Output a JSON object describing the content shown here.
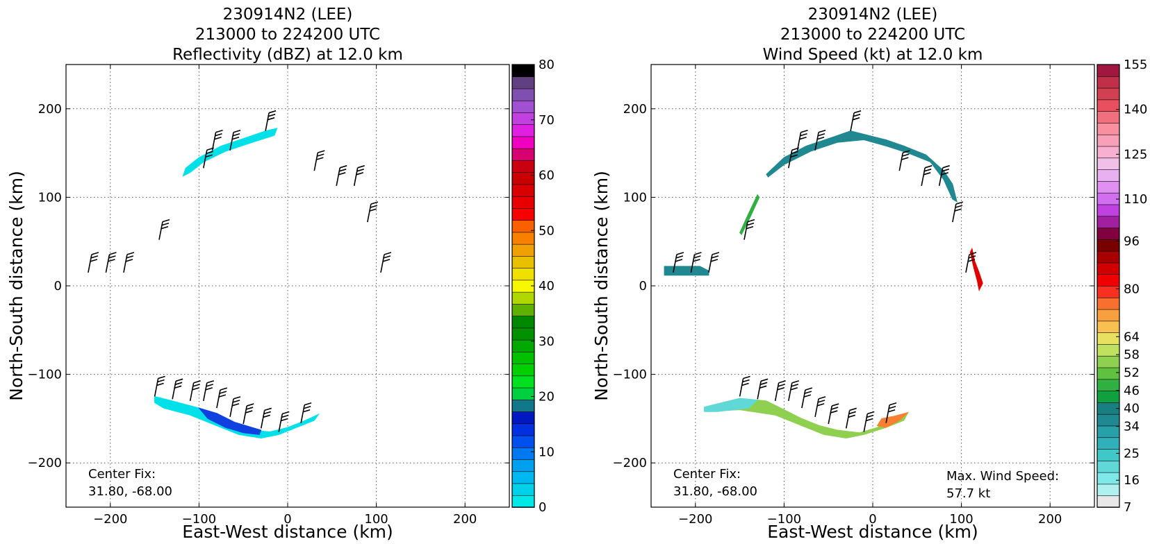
{
  "panels": [
    {
      "title_lines": [
        "230914N2 (LEE)",
        "213000 to 224200 UTC",
        "Reflectivity (dBZ) at 12.0 km"
      ],
      "xlabel": "East-West distance (km)",
      "ylabel": "North-South distance (km)",
      "xticks": [
        "−200",
        "−100",
        "0",
        "100",
        "200"
      ],
      "yticks": [
        "200",
        "100",
        "0",
        "−100",
        "−200"
      ],
      "center_fix_label": "Center Fix:",
      "center_fix_value": "31.80, -68.00",
      "max_wind_label": "",
      "max_wind_value": "",
      "colorbar_ticks": [
        "80",
        "70",
        "60",
        "50",
        "40",
        "30",
        "20",
        "10",
        "0"
      ],
      "colorbar_colors": [
        "#00e8e8",
        "#00d0e8",
        "#00b8f0",
        "#00a0f0",
        "#0078f0",
        "#0050f0",
        "#0030e0",
        "#0018c0",
        "#107888",
        "#00d040",
        "#00e020",
        "#00d000",
        "#00c000",
        "#00a800",
        "#009000",
        "#008800",
        "#60b000",
        "#b0d800",
        "#f8f800",
        "#f0e000",
        "#e8c000",
        "#f0a000",
        "#f88000",
        "#f86000",
        "#f80000",
        "#e80000",
        "#d80000",
        "#c80000",
        "#c80010",
        "#d80070",
        "#f000c0",
        "#e020e0",
        "#c040e0",
        "#a050d0",
        "#8050b0",
        "#604080",
        "#000000"
      ],
      "colorbar_vmin": 0,
      "colorbar_vmax": 80
    },
    {
      "title_lines": [
        "230914N2 (LEE)",
        "213000 to 224200 UTC",
        "Wind Speed (kt) at 12.0 km"
      ],
      "xlabel": "East-West distance (km)",
      "ylabel": "North-South distance (km)",
      "xticks": [
        "−200",
        "−100",
        "0",
        "100",
        "200"
      ],
      "yticks": [
        "200",
        "100",
        "0",
        "−100",
        "−200"
      ],
      "center_fix_label": "Center Fix:",
      "center_fix_value": "31.80, -68.00",
      "max_wind_label": "Max. Wind Speed:",
      "max_wind_value": "57.7 kt",
      "colorbar_ticks": [
        "155",
        "140",
        "125",
        "110",
        "96",
        "80",
        "64",
        "58",
        "52",
        "46",
        "40",
        "34",
        "25",
        "16",
        "7"
      ],
      "colorbar_colors": [
        "#e8e8e8",
        "#b0f0f0",
        "#80e8e8",
        "#60d8d8",
        "#40c8c8",
        "#30b0b8",
        "#28a0a8",
        "#208890",
        "#188080",
        "#10a040",
        "#30b040",
        "#60c040",
        "#90d050",
        "#c0e060",
        "#e8e060",
        "#f8c050",
        "#f8a040",
        "#f87030",
        "#f83020",
        "#f00000",
        "#d00000",
        "#a80000",
        "#780000",
        "#800040",
        "#a020a0",
        "#c040e0",
        "#d070f0",
        "#e090f0",
        "#e8b0f0",
        "#f0c0e8",
        "#f8b0d0",
        "#f8a0b8",
        "#f890a0",
        "#f07080",
        "#e85060",
        "#d04050",
        "#c03048",
        "#a01840"
      ],
      "colorbar_vmin": 7,
      "colorbar_vmax": 155
    }
  ],
  "chart_data": [
    {
      "type": "heatmap",
      "title": "230914N2 (LEE) 213000 to 224200 UTC Reflectivity (dBZ) at 12.0 km",
      "xlabel": "East-West distance (km)",
      "ylabel": "North-South distance (km)",
      "xlim": [
        -250,
        250
      ],
      "ylim": [
        -250,
        250
      ],
      "grid": true,
      "colorbar": {
        "label": "dBZ",
        "range": [
          0,
          80
        ],
        "ticks": [
          0,
          10,
          20,
          30,
          40,
          50,
          60,
          70,
          80
        ]
      },
      "echo_regions": [
        {
          "path": [
            [
              -115,
              133
            ],
            [
              -100,
              145
            ],
            [
              -75,
              158
            ],
            [
              -45,
              168
            ],
            [
              -25,
              175
            ],
            [
              -12,
              178
            ],
            [
              -15,
              170
            ],
            [
              -40,
              162
            ],
            [
              -70,
              152
            ],
            [
              -95,
              140
            ],
            [
              -110,
              128
            ],
            [
              -118,
              124
            ]
          ],
          "color": "#00e0e8"
        },
        {
          "path": [
            [
              -150,
              -125
            ],
            [
              -130,
              -130
            ],
            [
              -100,
              -138
            ],
            [
              -80,
              -148
            ],
            [
              -60,
              -158
            ],
            [
              -40,
              -163
            ],
            [
              -20,
              -165
            ],
            [
              0,
              -160
            ],
            [
              20,
              -152
            ],
            [
              35,
              -145
            ],
            [
              30,
              -152
            ],
            [
              10,
              -160
            ],
            [
              -10,
              -168
            ],
            [
              -30,
              -172
            ],
            [
              -55,
              -168
            ],
            [
              -80,
              -158
            ],
            [
              -110,
              -146
            ],
            [
              -140,
              -138
            ],
            [
              -150,
              -132
            ]
          ],
          "color": "#00e0e8"
        },
        {
          "path": [
            [
              -100,
              -138
            ],
            [
              -80,
              -144
            ],
            [
              -60,
              -154
            ],
            [
              -40,
              -160
            ],
            [
              -30,
              -163
            ],
            [
              -32,
              -168
            ],
            [
              -50,
              -166
            ],
            [
              -70,
              -160
            ],
            [
              -90,
              -150
            ]
          ],
          "color": "#1040e0"
        }
      ],
      "barbs": [
        {
          "x": -225,
          "y": 15
        },
        {
          "x": -205,
          "y": 15
        },
        {
          "x": -185,
          "y": 15
        },
        {
          "x": -145,
          "y": 52
        },
        {
          "x": -95,
          "y": 133
        },
        {
          "x": -85,
          "y": 153
        },
        {
          "x": -65,
          "y": 153
        },
        {
          "x": -25,
          "y": 175
        },
        {
          "x": 30,
          "y": 130
        },
        {
          "x": 55,
          "y": 113
        },
        {
          "x": 75,
          "y": 113
        },
        {
          "x": 90,
          "y": 72
        },
        {
          "x": 105,
          "y": 15
        },
        {
          "x": -150,
          "y": -125
        },
        {
          "x": -130,
          "y": -128
        },
        {
          "x": -110,
          "y": -130
        },
        {
          "x": -95,
          "y": -130
        },
        {
          "x": -80,
          "y": -138
        },
        {
          "x": -65,
          "y": -148
        },
        {
          "x": -50,
          "y": -156
        },
        {
          "x": -30,
          "y": -161
        },
        {
          "x": -10,
          "y": -165
        },
        {
          "x": 15,
          "y": -155
        }
      ],
      "center_fix": "31.80, -68.00"
    },
    {
      "type": "heatmap",
      "title": "230914N2 (LEE) 213000 to 224200 UTC Wind Speed (kt) at 12.0 km",
      "xlabel": "East-West distance (km)",
      "ylabel": "North-South distance (km)",
      "xlim": [
        -250,
        250
      ],
      "ylim": [
        -250,
        250
      ],
      "grid": true,
      "colorbar": {
        "label": "kt",
        "range": [
          7,
          155
        ],
        "ticks": [
          7,
          16,
          25,
          34,
          40,
          46,
          52,
          58,
          64,
          80,
          96,
          110,
          125,
          140,
          155
        ]
      },
      "wind_regions": [
        {
          "path": [
            [
              -235,
              22
            ],
            [
              -195,
              22
            ],
            [
              -185,
              17
            ],
            [
              -185,
              12
            ],
            [
              -235,
              12
            ]
          ],
          "color": "#208890"
        },
        {
          "path": [
            [
              -150,
              60
            ],
            [
              -140,
              82
            ],
            [
              -130,
              103
            ],
            [
              -128,
              100
            ],
            [
              -138,
              78
            ],
            [
              -148,
              58
            ]
          ],
          "color": "#30b040"
        },
        {
          "path": [
            [
              -120,
              126
            ],
            [
              -100,
              145
            ],
            [
              -75,
              158
            ],
            [
              -45,
              168
            ],
            [
              -25,
              175
            ],
            [
              -5,
              170
            ],
            [
              15,
              165
            ],
            [
              35,
              158
            ],
            [
              60,
              148
            ],
            [
              80,
              130
            ],
            [
              90,
              115
            ],
            [
              95,
              95
            ],
            [
              90,
              98
            ],
            [
              80,
              120
            ],
            [
              65,
              140
            ],
            [
              40,
              150
            ],
            [
              15,
              158
            ],
            [
              -10,
              165
            ],
            [
              -40,
              162
            ],
            [
              -70,
              152
            ],
            [
              -100,
              137
            ],
            [
              -118,
              123
            ]
          ],
          "color": "#208890"
        },
        {
          "path": [
            [
              -190,
              -137
            ],
            [
              -150,
              -127
            ],
            [
              -120,
              -130
            ],
            [
              -100,
              -140
            ],
            [
              -80,
              -150
            ],
            [
              -60,
              -158
            ],
            [
              -40,
              -163
            ],
            [
              -15,
              -166
            ],
            [
              5,
              -160
            ],
            [
              25,
              -150
            ],
            [
              40,
              -143
            ],
            [
              35,
              -152
            ],
            [
              15,
              -160
            ],
            [
              -10,
              -168
            ],
            [
              -30,
              -172
            ],
            [
              -55,
              -168
            ],
            [
              -80,
              -158
            ],
            [
              -110,
              -146
            ],
            [
              -150,
              -140
            ],
            [
              -190,
              -142
            ]
          ],
          "color": "#90d050"
        },
        {
          "path": [
            [
              -190,
              -137
            ],
            [
              -150,
              -127
            ],
            [
              -130,
              -129
            ],
            [
              -140,
              -138
            ],
            [
              -175,
              -142
            ],
            [
              -190,
              -142
            ]
          ],
          "color": "#60d8d8"
        },
        {
          "path": [
            [
              10,
              -150
            ],
            [
              25,
              -147
            ],
            [
              40,
              -143
            ],
            [
              30,
              -152
            ],
            [
              15,
              -160
            ],
            [
              5,
              -158
            ]
          ],
          "color": "#f88030"
        },
        {
          "path": [
            [
              112,
              42
            ],
            [
              115,
              28
            ],
            [
              120,
              15
            ],
            [
              124,
              3
            ],
            [
              120,
              -5
            ],
            [
              118,
              5
            ],
            [
              114,
              20
            ],
            [
              110,
              38
            ]
          ],
          "color": "#e00000"
        }
      ],
      "center_fix": "31.80, -68.00",
      "max_wind_speed_kt": 57.7
    }
  ]
}
